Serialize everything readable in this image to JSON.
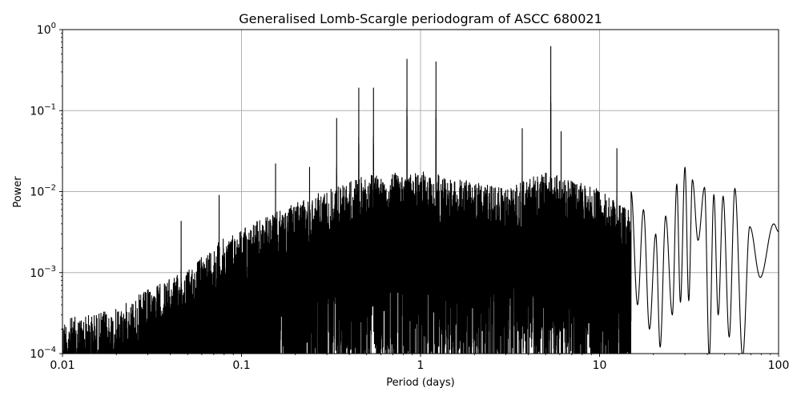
{
  "chart_data": {
    "type": "line",
    "title": "Generalised Lomb-Scargle periodogram of ASCC 680021",
    "xlabel": "Period (days)",
    "ylabel": "Power",
    "xscale": "log",
    "yscale": "log",
    "xlim": [
      0.01,
      100
    ],
    "ylim": [
      0.0001,
      1
    ],
    "grid": true,
    "legend": null,
    "x_ticks": [
      {
        "value": 0.01,
        "label": "0.01"
      },
      {
        "value": 0.1,
        "label": "0.1"
      },
      {
        "value": 1,
        "label": "1"
      },
      {
        "value": 10,
        "label": "10"
      },
      {
        "value": 100,
        "label": "100"
      }
    ],
    "y_ticks": [
      {
        "value": 0.0001,
        "base": "10",
        "exp": "−4"
      },
      {
        "value": 0.001,
        "base": "10",
        "exp": "−3"
      },
      {
        "value": 0.01,
        "base": "10",
        "exp": "−2"
      },
      {
        "value": 0.1,
        "base": "10",
        "exp": "−1"
      },
      {
        "value": 1,
        "base": "10",
        "exp": "0"
      }
    ],
    "line_color": "#000000",
    "grid_color": "#b0b0b0",
    "noise_envelope": {
      "description": "Dense noise floor; upper envelope of peaks rising with period",
      "points": [
        {
          "period": 0.01,
          "power": 0.0003
        },
        {
          "period": 0.02,
          "power": 0.0004
        },
        {
          "period": 0.03,
          "power": 0.0007
        },
        {
          "period": 0.05,
          "power": 0.0012
        },
        {
          "period": 0.07,
          "power": 0.0025
        },
        {
          "period": 0.1,
          "power": 0.004
        },
        {
          "period": 0.2,
          "power": 0.008
        },
        {
          "period": 0.3,
          "power": 0.012
        },
        {
          "period": 0.5,
          "power": 0.018
        },
        {
          "period": 1.0,
          "power": 0.02
        },
        {
          "period": 2.0,
          "power": 0.015
        },
        {
          "period": 3.0,
          "power": 0.012
        },
        {
          "period": 5.0,
          "power": 0.02
        },
        {
          "period": 10.0,
          "power": 0.012
        },
        {
          "period": 20.0,
          "power": 0.004
        }
      ]
    },
    "peaks": [
      {
        "period": 0.452,
        "power": 0.19
      },
      {
        "period": 0.546,
        "power": 0.19
      },
      {
        "period": 0.84,
        "power": 0.43
      },
      {
        "period": 1.22,
        "power": 0.4
      },
      {
        "period": 3.7,
        "power": 0.06
      },
      {
        "period": 5.34,
        "power": 0.62
      },
      {
        "period": 6.1,
        "power": 0.055
      },
      {
        "period": 12.5,
        "power": 0.034
      },
      {
        "period": 0.34,
        "power": 0.08
      },
      {
        "period": 0.24,
        "power": 0.02
      },
      {
        "period": 0.155,
        "power": 0.022
      },
      {
        "period": 0.075,
        "power": 0.009
      },
      {
        "period": 0.046,
        "power": 0.0043
      }
    ],
    "long_period_tail": [
      {
        "period": 15.0,
        "power": 0.01
      },
      {
        "period": 16.3,
        "power": 0.0004
      },
      {
        "period": 17.6,
        "power": 0.006
      },
      {
        "period": 19.0,
        "power": 0.0002
      },
      {
        "period": 20.6,
        "power": 0.003
      },
      {
        "period": 21.8,
        "power": 0.00012
      },
      {
        "period": 23.4,
        "power": 0.005
      },
      {
        "period": 25.5,
        "power": 0.0003
      },
      {
        "period": 27.0,
        "power": 0.0124
      },
      {
        "period": 28.3,
        "power": 0.00043
      },
      {
        "period": 30.0,
        "power": 0.02
      },
      {
        "period": 31.5,
        "power": 0.00045
      },
      {
        "period": 33.0,
        "power": 0.014
      },
      {
        "period": 35.5,
        "power": 0.0025
      },
      {
        "period": 38.6,
        "power": 0.0113
      },
      {
        "period": 41.0,
        "power": 9e-05
      },
      {
        "period": 43.5,
        "power": 0.0092
      },
      {
        "period": 46.0,
        "power": 0.0003
      },
      {
        "period": 49.0,
        "power": 0.0088
      },
      {
        "period": 53.0,
        "power": 0.00016
      },
      {
        "period": 57.0,
        "power": 0.011
      },
      {
        "period": 63.0,
        "power": 9e-05
      },
      {
        "period": 69.0,
        "power": 0.0037
      },
      {
        "period": 79.0,
        "power": 0.00087
      },
      {
        "period": 94.0,
        "power": 0.004
      },
      {
        "period": 100.0,
        "power": 0.0032
      }
    ]
  }
}
